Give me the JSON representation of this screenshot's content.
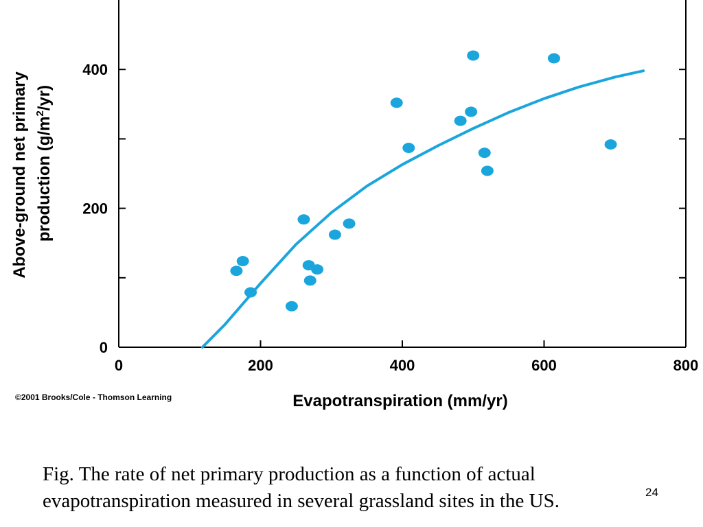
{
  "chart_data": {
    "type": "scatter",
    "title": "",
    "xlabel": "Evapotranspiration (mm/yr)",
    "ylabel_line1": "Above-ground net primary",
    "ylabel_line2_pre": "production (g/m",
    "ylabel_line2_sup": "2",
    "ylabel_line2_post": "/yr)",
    "xlim": [
      0,
      800
    ],
    "ylim": [
      0,
      500
    ],
    "x_ticks": [
      0,
      200,
      400,
      600,
      800
    ],
    "x_tick_labels": [
      "0",
      "200",
      "400",
      "600",
      "800"
    ],
    "y_ticks": [
      0,
      100,
      200,
      300,
      400
    ],
    "y_tick_labels": [
      "0",
      "",
      "200",
      "",
      "400"
    ],
    "grid": false,
    "color": "#1aa6dd",
    "points": [
      {
        "x": 166,
        "y": 110
      },
      {
        "x": 175,
        "y": 124
      },
      {
        "x": 186,
        "y": 79
      },
      {
        "x": 244,
        "y": 59
      },
      {
        "x": 261,
        "y": 184
      },
      {
        "x": 268,
        "y": 118
      },
      {
        "x": 270,
        "y": 96
      },
      {
        "x": 280,
        "y": 112
      },
      {
        "x": 305,
        "y": 162
      },
      {
        "x": 325,
        "y": 178
      },
      {
        "x": 392,
        "y": 352
      },
      {
        "x": 409,
        "y": 287
      },
      {
        "x": 482,
        "y": 326
      },
      {
        "x": 497,
        "y": 339
      },
      {
        "x": 500,
        "y": 420
      },
      {
        "x": 516,
        "y": 280
      },
      {
        "x": 520,
        "y": 254
      },
      {
        "x": 614,
        "y": 416
      },
      {
        "x": 694,
        "y": 292
      }
    ],
    "fit_curve": [
      {
        "x": 118,
        "y": 0
      },
      {
        "x": 150,
        "y": 33
      },
      {
        "x": 200,
        "y": 92
      },
      {
        "x": 250,
        "y": 148
      },
      {
        "x": 300,
        "y": 194
      },
      {
        "x": 350,
        "y": 232
      },
      {
        "x": 400,
        "y": 263
      },
      {
        "x": 450,
        "y": 290
      },
      {
        "x": 500,
        "y": 315
      },
      {
        "x": 550,
        "y": 338
      },
      {
        "x": 600,
        "y": 358
      },
      {
        "x": 650,
        "y": 375
      },
      {
        "x": 700,
        "y": 389
      },
      {
        "x": 740,
        "y": 398
      }
    ]
  },
  "copyright": "©2001 Brooks/Cole - Thomson Learning",
  "caption_line1": "Fig. The rate of net primary production as a function of actual",
  "caption_line2": "evapotranspiration measured in several grassland sites in the US.",
  "slide_number": "24"
}
